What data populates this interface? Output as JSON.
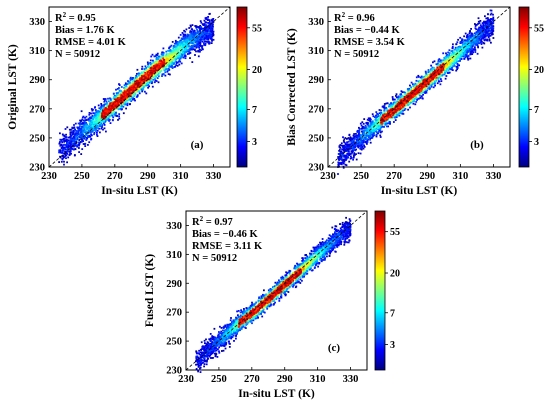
{
  "chart_data": [
    {
      "type": "scatter",
      "panel_label": "(a)",
      "xlabel": "In-situ LST (K)",
      "ylabel": "Original LST (K)",
      "xlim": [
        230,
        340
      ],
      "ylim": [
        230,
        340
      ],
      "xticks": [
        230,
        250,
        270,
        290,
        310,
        330
      ],
      "yticks": [
        230,
        250,
        270,
        290,
        310,
        330
      ],
      "stats": [
        "Bias = 1.76 K",
        "RMSE = 4.01 K",
        "N = 50912"
      ],
      "r2_label": "R",
      "r2_value": " = 0.95",
      "bias": 1.76,
      "rmse": 4.01,
      "n": 50912,
      "colorbar_ticks": [
        "55",
        "20",
        "7",
        "3"
      ],
      "reference_line": "1:1 dashed",
      "x": [
        236,
        240,
        245,
        250,
        255,
        260,
        265,
        270,
        275,
        280,
        285,
        290,
        295,
        300,
        305,
        310,
        315,
        320,
        325,
        330
      ],
      "y": [
        241,
        244,
        249,
        254,
        258,
        263,
        268,
        273,
        278,
        283,
        288,
        293,
        298,
        302,
        306,
        311,
        315,
        319,
        322,
        325
      ],
      "spread": 3.9
    },
    {
      "type": "scatter",
      "panel_label": "(b)",
      "xlabel": "In-situ LST (K)",
      "ylabel": "Bias Corrected LST (K)",
      "xlim": [
        230,
        340
      ],
      "ylim": [
        230,
        340
      ],
      "xticks": [
        230,
        250,
        270,
        290,
        310,
        330
      ],
      "yticks": [
        230,
        250,
        270,
        290,
        310,
        330
      ],
      "stats": [
        "Bias = −0.44 K",
        "RMSE = 3.54 K",
        "N = 50912"
      ],
      "r2_label": "R",
      "r2_value": " = 0.96",
      "bias": -0.44,
      "rmse": 3.54,
      "n": 50912,
      "colorbar_ticks": [
        "55",
        "20",
        "7",
        "3"
      ],
      "reference_line": "1:1 dashed",
      "x": [
        236,
        240,
        245,
        250,
        255,
        260,
        265,
        270,
        275,
        280,
        285,
        290,
        295,
        300,
        305,
        310,
        315,
        320,
        325,
        330
      ],
      "y": [
        236,
        240,
        245,
        250,
        255,
        260,
        265,
        269,
        274,
        279,
        284,
        289,
        294,
        299,
        304,
        309,
        314,
        319,
        324,
        329
      ],
      "spread": 3.4
    },
    {
      "type": "scatter",
      "panel_label": "(c)",
      "xlabel": "In-situ LST (K)",
      "ylabel": "Fused LST (K)",
      "xlim": [
        230,
        340
      ],
      "ylim": [
        230,
        340
      ],
      "xticks": [
        230,
        250,
        270,
        290,
        310,
        330
      ],
      "yticks": [
        230,
        250,
        270,
        290,
        310,
        330
      ],
      "stats": [
        "Bias = −0.46 K",
        "RMSE = 3.11 K",
        "N = 50912"
      ],
      "r2_label": "R",
      "r2_value": " = 0.97",
      "bias": -0.46,
      "rmse": 3.11,
      "n": 50912,
      "colorbar_ticks": [
        "55",
        "20",
        "7",
        "3"
      ],
      "reference_line": "1:1 dashed",
      "x": [
        236,
        240,
        245,
        250,
        255,
        260,
        265,
        270,
        275,
        280,
        285,
        290,
        295,
        300,
        305,
        310,
        315,
        320,
        325,
        330
      ],
      "y": [
        236,
        240,
        245,
        250,
        255,
        260,
        265,
        269,
        274,
        279,
        284,
        289,
        294,
        299,
        304,
        309,
        314,
        319,
        324,
        329
      ],
      "spread": 3.0
    }
  ],
  "colors": {
    "colormap": [
      "#00007f",
      "#0000ff",
      "#0080ff",
      "#00ffff",
      "#80ff80",
      "#ffff00",
      "#ff8000",
      "#ff0000",
      "#800000"
    ],
    "axis": "#000000"
  }
}
